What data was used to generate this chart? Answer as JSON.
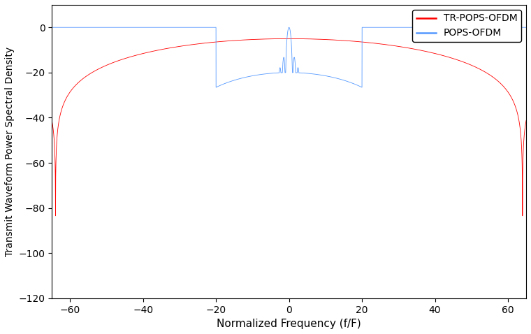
{
  "title": "",
  "xlabel": "Normalized Frequency (f/F)",
  "ylabel": "Transmit Waveform Power Spectral Density",
  "xlim": [
    -65,
    65
  ],
  "ylim": [
    -120,
    10
  ],
  "yticks": [
    0,
    -20,
    -40,
    -60,
    -80,
    -100,
    -120
  ],
  "xticks": [
    -60,
    -40,
    -20,
    0,
    20,
    40,
    60
  ],
  "legend": [
    "TR-POPS-OFDM",
    "POPS-OFDM"
  ],
  "colors": [
    "#ff0000",
    "#5599ff"
  ],
  "linewidth_plot": 0.6,
  "N": 64,
  "background": "#ffffff",
  "pops_floor": -57.0,
  "pops_osc_amp": 5.0,
  "pops_osc_freq": 0.25,
  "tr_floor_mid": -85.0,
  "tr_floor_edge": -90.0,
  "tr_osc_amp": 9.0,
  "tr_osc_freq": 0.7
}
